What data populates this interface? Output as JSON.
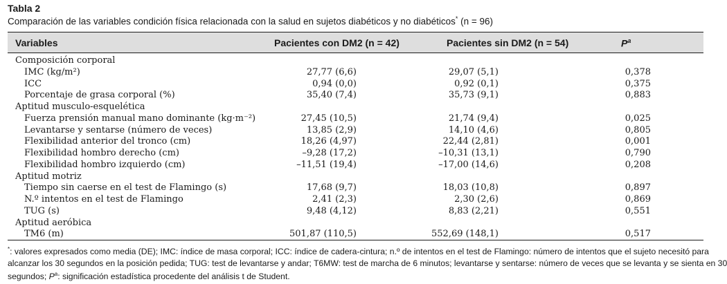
{
  "table": {
    "label": "Tabla 2",
    "caption": "Comparación de las variables condición física relacionada con la salud en sujetos diabéticos y no diabéticos",
    "caption_mark": "*",
    "caption_n": " (n = 96)",
    "headers": {
      "variables": "Variables",
      "dm2": "Pacientes con DM2 (n = 42)",
      "no_dm2": "Pacientes sin DM2 (n = 54)",
      "p": "P",
      "p_sup": "a"
    },
    "rows": [
      {
        "type": "section",
        "label": "Composición corporal"
      },
      {
        "type": "item",
        "label": "IMC (kg/m²)",
        "dm2": "27,77 (6,6)",
        "no_dm2": "29,07 (5,1)",
        "p": "0,378"
      },
      {
        "type": "item",
        "label": "ICC",
        "dm2": "0,94 (0,0)",
        "no_dm2": "0,92 (0,1)",
        "p": "0,375"
      },
      {
        "type": "item",
        "label": "Porcentaje de grasa corporal (%)",
        "dm2": "35,40 (7,4)",
        "no_dm2": "35,73 (9,1)",
        "p": "0,883"
      },
      {
        "type": "section",
        "label": "Aptitud musculo-esquelética"
      },
      {
        "type": "item",
        "label": "Fuerza prensión manual mano dominante (kg·m⁻²)",
        "dm2": "27,45 (10,5)",
        "no_dm2": "21,74 (9,4)",
        "p": "0,025"
      },
      {
        "type": "item",
        "label": "Levantarse y sentarse (número de veces)",
        "dm2": "13,85 (2,9)",
        "no_dm2": "14,10 (4,6)",
        "p": "0,805"
      },
      {
        "type": "item",
        "label": "Flexibilidad anterior del tronco (cm)",
        "dm2": "18,26 (4,97)",
        "no_dm2": "22,44 (2,81)",
        "p": "0,001"
      },
      {
        "type": "item",
        "label": "Flexibilidad hombro derecho (cm)",
        "dm2": "–9,28 (17,2)",
        "no_dm2": "–10,31 (13,1)",
        "p": "0,790"
      },
      {
        "type": "item",
        "label": "Flexibilidad hombro izquierdo (cm)",
        "dm2": "–11,51 (19,4)",
        "no_dm2": "–17,00 (14,6)",
        "p": "0,208"
      },
      {
        "type": "section",
        "label": "Aptitud motriz"
      },
      {
        "type": "item",
        "label": "Tiempo sin caerse en el test de Flamingo (s)",
        "dm2": "17,68 (9,7)",
        "no_dm2": "18,03 (10,8)",
        "p": "0,897"
      },
      {
        "type": "item",
        "label": "N.º intentos en el test de Flamingo",
        "dm2": "2,41 (2,3)",
        "no_dm2": "2,30 (2,6)",
        "p": "0,869"
      },
      {
        "type": "item",
        "label": "TUG (s)",
        "dm2": "9,48 (4,12)",
        "no_dm2": "8,83 (2,21)",
        "p": "0,551"
      },
      {
        "type": "section",
        "label": "Aptitud aeróbica"
      },
      {
        "type": "item",
        "label": "TM6 (m)",
        "dm2": "501,87 (110,5)",
        "no_dm2": "552,69 (148,1)",
        "p": "0,517"
      }
    ],
    "footnote": {
      "mark": "*",
      "line1": ": valores expresados como media (DE); IMC: índice de masa corporal; ICC: índice de cadera-cintura; n.º de intentos en el test de Flamingo: número de intentos que el sujeto necesitó para",
      "line2": "alcanzar los 30 segundos en la posición pedida; TUG: test de levantarse y andar; T6MW: test de marcha de 6 minutos; levantarse y sentarse: número de veces que se levanta y se sienta en 30",
      "line3_pre": "segundos; ",
      "line3_p": "P",
      "line3_psup": "a",
      "line3_post": ": significación estadística procedente del análisis t de Student."
    }
  }
}
